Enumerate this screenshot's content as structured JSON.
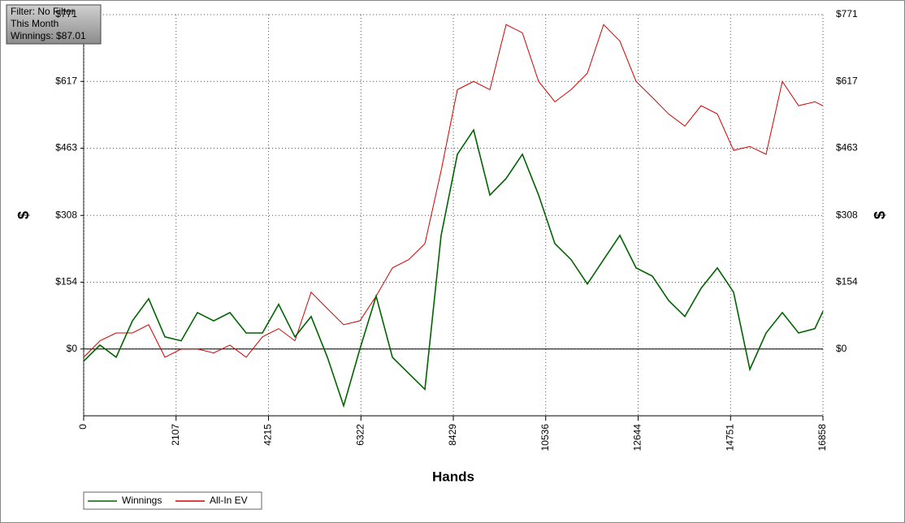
{
  "chart_data": {
    "type": "line",
    "info": [
      "Filter: No Filter",
      "This Month",
      "Winnings: $87.01"
    ],
    "xlabel": "Hands",
    "ylabel": "$",
    "y2label": "$",
    "x": [
      0,
      371,
      741,
      1112,
      1482,
      1853,
      2223,
      2594,
      2964,
      3335,
      3705,
      4076,
      4446,
      4817,
      5187,
      5558,
      5928,
      6299,
      6669,
      7040,
      7410,
      7781,
      8151,
      8522,
      8892,
      9263,
      9633,
      10004,
      10374,
      10745,
      11115,
      11486,
      11856,
      12227,
      12597,
      12968,
      13338,
      13709,
      14079,
      14450,
      14820,
      15191,
      15561,
      15932,
      16302,
      16673,
      16858
    ],
    "series": [
      {
        "name": "Winnings",
        "color": "#006400",
        "values": [
          -28,
          9,
          -19,
          65,
          116,
          28,
          19,
          84,
          65,
          84,
          37,
          37,
          103,
          28,
          75,
          -19,
          -131,
          0,
          122,
          -19,
          -56,
          -93,
          262,
          449,
          505,
          355,
          393,
          449,
          355,
          243,
          206,
          150,
          206,
          262,
          187,
          168,
          112,
          75,
          140,
          187,
          131,
          -47,
          37,
          84,
          37,
          47,
          87
        ]
      },
      {
        "name": "All-In EV",
        "color": "#d40000",
        "values": [
          -19,
          19,
          37,
          37,
          56,
          -19,
          0,
          0,
          -9,
          9,
          -19,
          28,
          47,
          19,
          131,
          93,
          56,
          65,
          122,
          187,
          206,
          243,
          411,
          598,
          617,
          598,
          748,
          729,
          617,
          570,
          598,
          636,
          748,
          710,
          617,
          580,
          542,
          514,
          561,
          542,
          458,
          467,
          449,
          617,
          561,
          570,
          561
        ]
      }
    ],
    "xlim": [
      0,
      16858
    ],
    "xticks": [
      0,
      2107,
      4215,
      6322,
      8429,
      10536,
      12644,
      14751,
      16858
    ],
    "ylim": [
      -154,
      771
    ],
    "yticks": [
      {
        "value": 0,
        "label": "$0"
      },
      {
        "value": 154,
        "label": "$154"
      },
      {
        "value": 308,
        "label": "$308"
      },
      {
        "value": 463,
        "label": "$463"
      },
      {
        "value": 617,
        "label": "$617"
      },
      {
        "value": 771,
        "label": "$771"
      }
    ],
    "grid": true
  }
}
